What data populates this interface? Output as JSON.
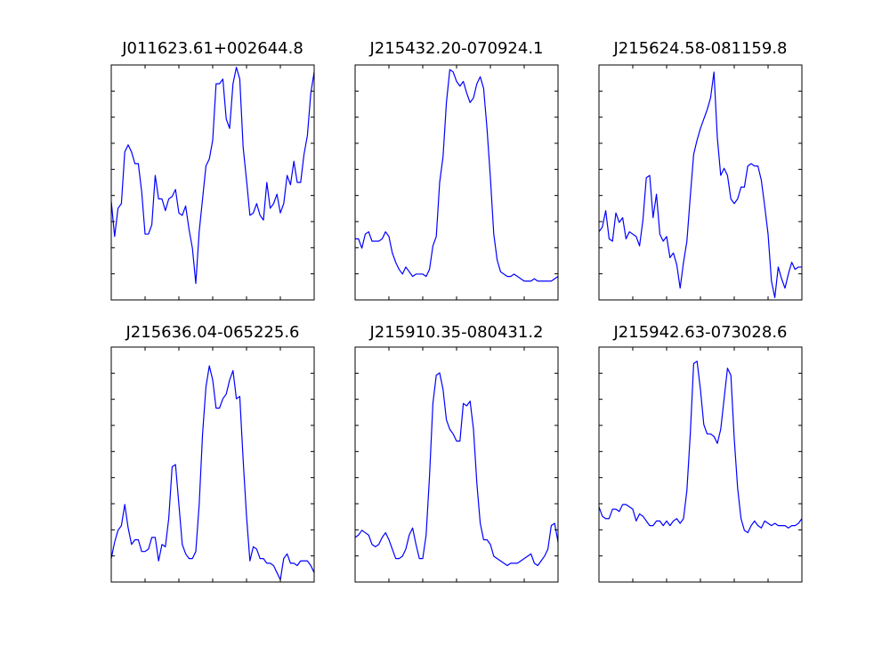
{
  "figure": {
    "series_color": "#0000ff",
    "axis_color": "#000000",
    "background": "#ffffff"
  },
  "chart_data": [
    {
      "type": "line",
      "title": "J011623.61+002644.8",
      "xlabel": "",
      "ylabel": "",
      "xlim": [
        0,
        60
      ],
      "ylim": [
        0,
        10
      ],
      "grid": false,
      "x": [
        0,
        1,
        2,
        3,
        4,
        5,
        6,
        7,
        8,
        9,
        10,
        11,
        12,
        13,
        14,
        15,
        16,
        17,
        18,
        19,
        20,
        21,
        22,
        23,
        24,
        25,
        26,
        27,
        28,
        29,
        30,
        31,
        32,
        33,
        34,
        35,
        36,
        37,
        38,
        39,
        40,
        41,
        42,
        43,
        44,
        45,
        46,
        47,
        48,
        49,
        50,
        51,
        52,
        53,
        54,
        55,
        56,
        57,
        58,
        59,
        60
      ],
      "series": [
        {
          "values": [
            4.2,
            2.7,
            3.9,
            4.1,
            6.3,
            6.6,
            6.3,
            5.8,
            5.8,
            4.6,
            2.8,
            2.8,
            3.2,
            5.3,
            4.3,
            4.3,
            3.8,
            4.3,
            4.4,
            4.7,
            3.7,
            3.6,
            4.0,
            3.0,
            2.2,
            0.7,
            2.9,
            4.3,
            5.7,
            6.0,
            6.8,
            9.2,
            9.2,
            9.4,
            7.7,
            7.3,
            9.2,
            9.9,
            9.4,
            6.5,
            5.1,
            3.6,
            3.7,
            4.1,
            3.6,
            3.4,
            5.0,
            3.9,
            4.1,
            4.5,
            3.7,
            4.1,
            5.3,
            4.9,
            5.9,
            5.0,
            5.0,
            6.2,
            7.0,
            8.8,
            9.7
          ]
        }
      ]
    },
    {
      "type": "line",
      "title": "J215432.20-070924.1",
      "xlabel": "",
      "ylabel": "",
      "xlim": [
        0,
        60
      ],
      "ylim": [
        0,
        10
      ],
      "grid": false,
      "x": [
        0,
        1,
        2,
        3,
        4,
        5,
        6,
        7,
        8,
        9,
        10,
        11,
        12,
        13,
        14,
        15,
        16,
        17,
        18,
        19,
        20,
        21,
        22,
        23,
        24,
        25,
        26,
        27,
        28,
        29,
        30,
        31,
        32,
        33,
        34,
        35,
        36,
        37,
        38,
        39,
        40,
        41,
        42,
        43,
        44,
        45,
        46,
        47,
        48,
        49,
        50,
        51,
        52,
        53,
        54,
        55,
        56,
        57,
        58,
        59,
        60
      ],
      "series": [
        {
          "values": [
            2.6,
            2.6,
            2.2,
            2.8,
            2.9,
            2.5,
            2.5,
            2.5,
            2.6,
            2.9,
            2.7,
            2.0,
            1.6,
            1.3,
            1.1,
            1.4,
            1.2,
            1.0,
            1.1,
            1.1,
            1.1,
            1.0,
            1.3,
            2.3,
            2.7,
            5.0,
            6.1,
            8.4,
            9.8,
            9.7,
            9.3,
            9.1,
            9.3,
            8.8,
            8.4,
            8.6,
            9.2,
            9.5,
            9.0,
            7.3,
            5.2,
            2.8,
            1.7,
            1.2,
            1.1,
            1.0,
            1.0,
            1.1,
            1.0,
            0.9,
            0.8,
            0.8,
            0.8,
            0.9,
            0.8,
            0.8,
            0.8,
            0.8,
            0.8,
            0.9,
            1.0
          ]
        }
      ]
    },
    {
      "type": "line",
      "title": "J215624.58-081159.8",
      "xlabel": "",
      "ylabel": "",
      "xlim": [
        0,
        60
      ],
      "ylim": [
        0,
        10
      ],
      "grid": false,
      "x": [
        0,
        1,
        2,
        3,
        4,
        5,
        6,
        7,
        8,
        9,
        10,
        11,
        12,
        13,
        14,
        15,
        16,
        17,
        18,
        19,
        20,
        21,
        22,
        23,
        24,
        25,
        26,
        27,
        28,
        29,
        30,
        31,
        32,
        33,
        34,
        35,
        36,
        37,
        38,
        39,
        40,
        41,
        42,
        43,
        44,
        45,
        46,
        47,
        48,
        49,
        50,
        51,
        52,
        53,
        54,
        55,
        56,
        57,
        58,
        59,
        60
      ],
      "series": [
        {
          "values": [
            2.9,
            3.1,
            3.8,
            2.6,
            2.5,
            3.7,
            3.3,
            3.5,
            2.6,
            2.9,
            2.8,
            2.7,
            2.3,
            3.4,
            5.2,
            5.3,
            3.5,
            4.5,
            2.8,
            2.5,
            2.7,
            1.8,
            2.0,
            1.5,
            0.5,
            1.6,
            2.5,
            4.4,
            6.2,
            6.8,
            7.3,
            7.7,
            8.1,
            8.6,
            9.7,
            6.9,
            5.3,
            5.6,
            5.3,
            4.3,
            4.1,
            4.3,
            4.8,
            4.8,
            5.7,
            5.8,
            5.7,
            5.7,
            5.1,
            4.0,
            2.8,
            0.8,
            0.1,
            1.4,
            0.9,
            0.5,
            1.1,
            1.6,
            1.3,
            1.4,
            1.4
          ]
        }
      ]
    },
    {
      "type": "line",
      "title": "J215636.04-065225.6",
      "xlabel": "",
      "ylabel": "",
      "xlim": [
        0,
        60
      ],
      "ylim": [
        0,
        10
      ],
      "grid": false,
      "x": [
        0,
        1,
        2,
        3,
        4,
        5,
        6,
        7,
        8,
        9,
        10,
        11,
        12,
        13,
        14,
        15,
        16,
        17,
        18,
        19,
        20,
        21,
        22,
        23,
        24,
        25,
        26,
        27,
        28,
        29,
        30,
        31,
        32,
        33,
        34,
        35,
        36,
        37,
        38,
        39,
        40,
        41,
        42,
        43,
        44,
        45,
        46,
        47,
        48,
        49,
        50,
        51,
        52,
        53,
        54,
        55,
        56,
        57,
        58,
        59,
        60
      ],
      "series": [
        {
          "values": [
            1.0,
            1.7,
            2.2,
            2.4,
            3.3,
            2.3,
            1.6,
            1.8,
            1.8,
            1.3,
            1.3,
            1.4,
            1.9,
            1.9,
            0.9,
            1.6,
            1.5,
            2.7,
            4.9,
            5.0,
            3.3,
            1.6,
            1.2,
            1.0,
            1.0,
            1.3,
            3.3,
            6.3,
            8.3,
            9.2,
            8.6,
            7.4,
            7.4,
            7.8,
            8.0,
            8.6,
            9.0,
            7.8,
            7.9,
            5.2,
            2.8,
            0.9,
            1.5,
            1.4,
            1.0,
            1.0,
            0.8,
            0.8,
            0.7,
            0.4,
            0.1,
            1.0,
            1.2,
            0.8,
            0.8,
            0.7,
            0.9,
            0.9,
            0.9,
            0.7,
            0.4
          ]
        }
      ]
    },
    {
      "type": "line",
      "title": "J215910.35-080431.2",
      "xlabel": "",
      "ylabel": "",
      "xlim": [
        0,
        60
      ],
      "ylim": [
        0,
        10
      ],
      "grid": false,
      "x": [
        0,
        1,
        2,
        3,
        4,
        5,
        6,
        7,
        8,
        9,
        10,
        11,
        12,
        13,
        14,
        15,
        16,
        17,
        18,
        19,
        20,
        21,
        22,
        23,
        24,
        25,
        26,
        27,
        28,
        29,
        30,
        31,
        32,
        33,
        34,
        35,
        36,
        37,
        38,
        39,
        40,
        41,
        42,
        43,
        44,
        45,
        46,
        47,
        48,
        49,
        50,
        51,
        52,
        53,
        54,
        55,
        56,
        57,
        58,
        59,
        60
      ],
      "series": [
        {
          "values": [
            1.9,
            2.0,
            2.2,
            2.1,
            2.0,
            1.6,
            1.5,
            1.6,
            1.9,
            2.1,
            1.8,
            1.4,
            1.0,
            1.0,
            1.1,
            1.4,
            2.0,
            2.3,
            1.6,
            1.0,
            1.0,
            2.0,
            4.5,
            7.6,
            8.8,
            8.9,
            8.2,
            6.9,
            6.5,
            6.3,
            6.0,
            6.0,
            7.6,
            7.5,
            7.7,
            6.5,
            4.2,
            2.5,
            1.8,
            1.8,
            1.6,
            1.1,
            1.0,
            0.9,
            0.8,
            0.7,
            0.8,
            0.8,
            0.8,
            0.9,
            1.0,
            1.1,
            1.2,
            0.8,
            0.7,
            0.9,
            1.1,
            1.4,
            2.4,
            2.5,
            1.7
          ]
        }
      ]
    },
    {
      "type": "line",
      "title": "J215942.63-073028.6",
      "xlabel": "",
      "ylabel": "",
      "xlim": [
        0,
        60
      ],
      "ylim": [
        0,
        10
      ],
      "grid": false,
      "x": [
        0,
        1,
        2,
        3,
        4,
        5,
        6,
        7,
        8,
        9,
        10,
        11,
        12,
        13,
        14,
        15,
        16,
        17,
        18,
        19,
        20,
        21,
        22,
        23,
        24,
        25,
        26,
        27,
        28,
        29,
        30,
        31,
        32,
        33,
        34,
        35,
        36,
        37,
        38,
        39,
        40,
        41,
        42,
        43,
        44,
        45,
        46,
        47,
        48,
        49,
        50,
        51,
        52,
        53,
        54,
        55,
        56,
        57,
        58,
        59,
        60
      ],
      "series": [
        {
          "values": [
            3.2,
            2.8,
            2.7,
            2.7,
            3.1,
            3.1,
            3.0,
            3.3,
            3.3,
            3.2,
            3.1,
            2.6,
            2.9,
            2.8,
            2.6,
            2.4,
            2.4,
            2.6,
            2.6,
            2.4,
            2.6,
            2.4,
            2.6,
            2.7,
            2.5,
            2.7,
            3.9,
            6.3,
            9.3,
            9.4,
            8.2,
            6.7,
            6.3,
            6.3,
            6.2,
            5.9,
            6.5,
            7.8,
            9.1,
            8.8,
            6.1,
            4.0,
            2.7,
            2.2,
            2.1,
            2.4,
            2.6,
            2.4,
            2.3,
            2.6,
            2.5,
            2.4,
            2.5,
            2.4,
            2.4,
            2.4,
            2.3,
            2.4,
            2.4,
            2.5,
            2.7
          ]
        }
      ]
    }
  ]
}
